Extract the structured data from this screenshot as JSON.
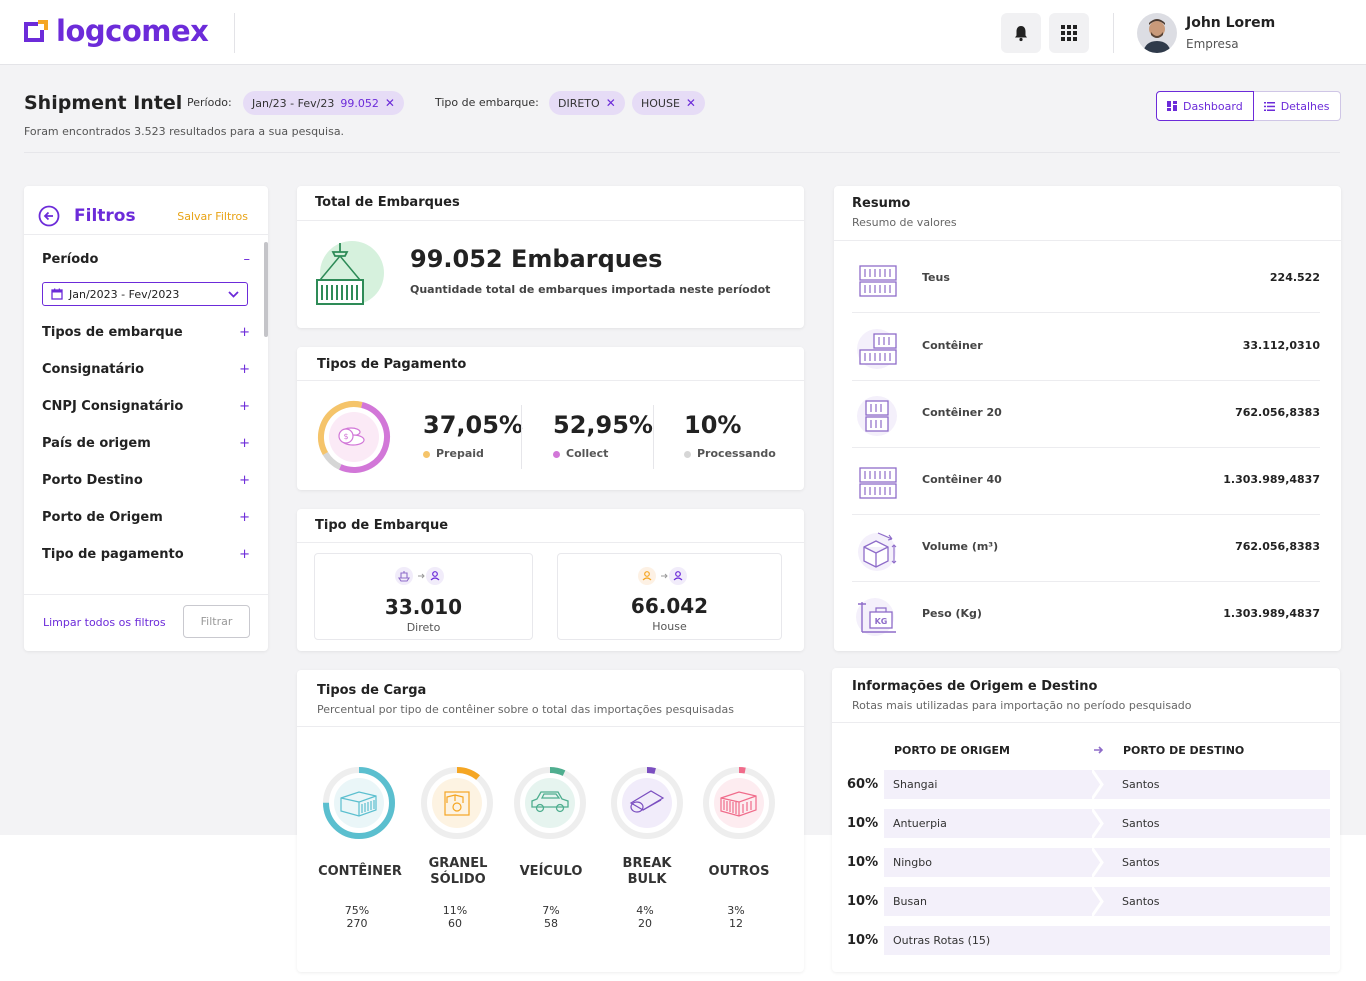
{
  "brand": {
    "name": "logcomex",
    "accent": "#6c2bd9",
    "orange": "#e8a316"
  },
  "header": {
    "notifications_icon": "bell-icon",
    "apps_icon": "grid-icon",
    "user_name": "John Lorem",
    "user_company": "Empresa"
  },
  "page": {
    "title": "Shipment Intel",
    "period_label": "Período:",
    "period_chip": "Jan/23 - Fev/23",
    "period_count": "99.052",
    "type_label": "Tipo de embarque:",
    "type_chips": [
      "DIRETO",
      "HOUSE"
    ],
    "results_text": "Foram encontrados 3.523 resultados para a sua pesquisa.",
    "view_dashboard": "Dashboard",
    "view_details": "Detalhes"
  },
  "filters": {
    "title": "Filtros",
    "save": "Salvar Filtros",
    "period_label": "Período",
    "period_value": "Jan/2023 - Fev/2023",
    "items": [
      "Tipos de embarque",
      "Consignatário",
      "CNPJ Consignatário",
      "País de origem",
      "Porto Destino",
      "Porto de Origem",
      "Tipo de pagamento"
    ],
    "clear": "Limpar todos os filtros",
    "apply": "Filtrar"
  },
  "total": {
    "title": "Total de Embarques",
    "value": "99.052 Embarques",
    "desc": "Quantidade total de embarques importada neste períodot"
  },
  "payment": {
    "title": "Tipos de Pagamento",
    "items": [
      {
        "pct": "37,05%",
        "label": "Prepaid",
        "color": "#f5c46a",
        "share": 37.05
      },
      {
        "pct": "52,95%",
        "label": "Collect",
        "color": "#d277d8",
        "share": 52.95
      },
      {
        "pct": "10%",
        "label": "Processando",
        "color": "#d6d6d6",
        "share": 10
      }
    ]
  },
  "shipment_type": {
    "title": "Tipo de Embarque",
    "direct_value": "33.010",
    "direct_label": "Direto",
    "house_value": "66.042",
    "house_label": "House"
  },
  "cargo": {
    "title": "Tipos de Carga",
    "subtitle": "Percentual por tipo de contêiner sobre o total das importações pesquisadas",
    "items": [
      {
        "name1": "CONTÊINER",
        "name2": "",
        "pct": "75%",
        "count": "270",
        "share": 75,
        "color": "#5bbfcf"
      },
      {
        "name1": "GRANEL",
        "name2": "SÓLIDO",
        "pct": "11%",
        "count": "60",
        "share": 11,
        "color": "#f5a623"
      },
      {
        "name1": "VEÍCULO",
        "name2": "",
        "pct": "7%",
        "count": "58",
        "share": 7,
        "color": "#4fae8f"
      },
      {
        "name1": "BREAK",
        "name2": "BULK",
        "pct": "4%",
        "count": "20",
        "share": 4,
        "color": "#7b4fc0"
      },
      {
        "name1": "OUTROS",
        "name2": "",
        "pct": "3%",
        "count": "12",
        "share": 3,
        "color": "#f06b8a"
      }
    ]
  },
  "summary": {
    "title": "Resumo",
    "subtitle": "Resumo de valores",
    "rows": [
      {
        "label": "Teus",
        "value": "224.522",
        "icon": "teus-icon"
      },
      {
        "label": "Contêiner",
        "value": "33.112,0310",
        "icon": "container-icon"
      },
      {
        "label": "Contêiner 20",
        "value": "762.056,8383",
        "icon": "container-20-icon"
      },
      {
        "label": "Contêiner 40",
        "value": "1.303.989,4837",
        "icon": "container-40-icon"
      },
      {
        "label": "Volume (m³)",
        "value": "762.056,8383",
        "icon": "volume-icon"
      },
      {
        "label": "Peso (Kg)",
        "value": "1.303.989,4837",
        "icon": "weight-icon",
        "icon_text": "KG"
      }
    ]
  },
  "routes": {
    "title": "Informações de Origem e Destino",
    "subtitle": "Rotas mais utilizadas para importação no período pesquisado",
    "origin_header": "PORTO DE ORIGEM",
    "dest_header": "PORTO DE DESTINO",
    "rows": [
      {
        "pct": "60%",
        "origin": "Shangai",
        "dest": "Santos"
      },
      {
        "pct": "10%",
        "origin": "Antuerpia",
        "dest": "Santos"
      },
      {
        "pct": "10%",
        "origin": "Ningbo",
        "dest": "Santos"
      },
      {
        "pct": "10%",
        "origin": "Busan",
        "dest": "Santos"
      },
      {
        "pct": "10%",
        "origin": "Outras Rotas (15)",
        "dest": ""
      }
    ]
  }
}
